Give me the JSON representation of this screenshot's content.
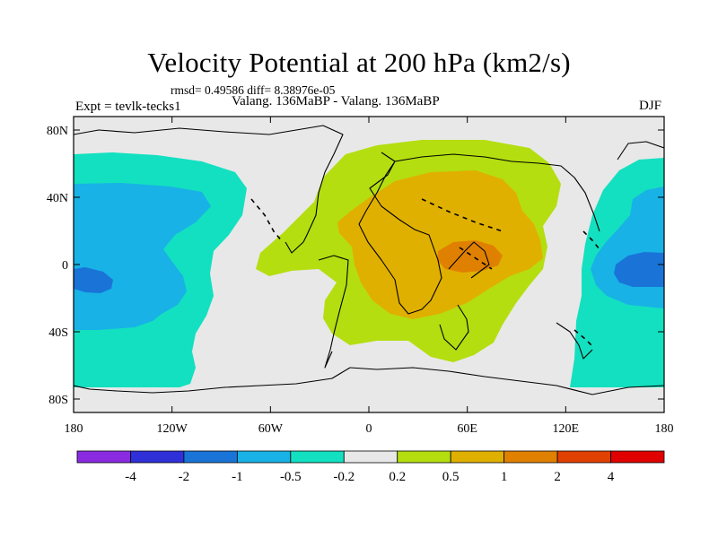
{
  "title": "Velocity Potential at 200 hPa (km2/s)",
  "stats": "rmsd= 0.49586 diff= 8.38976e-05",
  "experiment": "Expt = tevlk-tecks1",
  "subtitle": "Valang. 136MaBP - Valang. 136MaBP",
  "season": "DJF",
  "axes": {
    "x_ticks": [
      {
        "value": -180,
        "label": "180"
      },
      {
        "value": -120,
        "label": "120W"
      },
      {
        "value": -60,
        "label": "60W"
      },
      {
        "value": 0,
        "label": "0"
      },
      {
        "value": 60,
        "label": "60E"
      },
      {
        "value": 120,
        "label": "120E"
      },
      {
        "value": 180,
        "label": "180"
      }
    ],
    "y_ticks": [
      {
        "value": 80,
        "label": "80N"
      },
      {
        "value": 40,
        "label": "40N"
      },
      {
        "value": 0,
        "label": "0"
      },
      {
        "value": -40,
        "label": "40S"
      },
      {
        "value": -80,
        "label": "80S"
      }
    ]
  },
  "colorbar": {
    "colors": [
      "#8a2be2",
      "#3030d8",
      "#1a74d8",
      "#18b2e6",
      "#13e0c0",
      "#e8e8e8",
      "#b4de10",
      "#e0b000",
      "#e08000",
      "#e04000",
      "#e00000"
    ],
    "labels": [
      "-4",
      "-2",
      "-1",
      "-0.5",
      "-0.2",
      "0.2",
      "0.5",
      "1",
      "2",
      "4"
    ]
  }
}
